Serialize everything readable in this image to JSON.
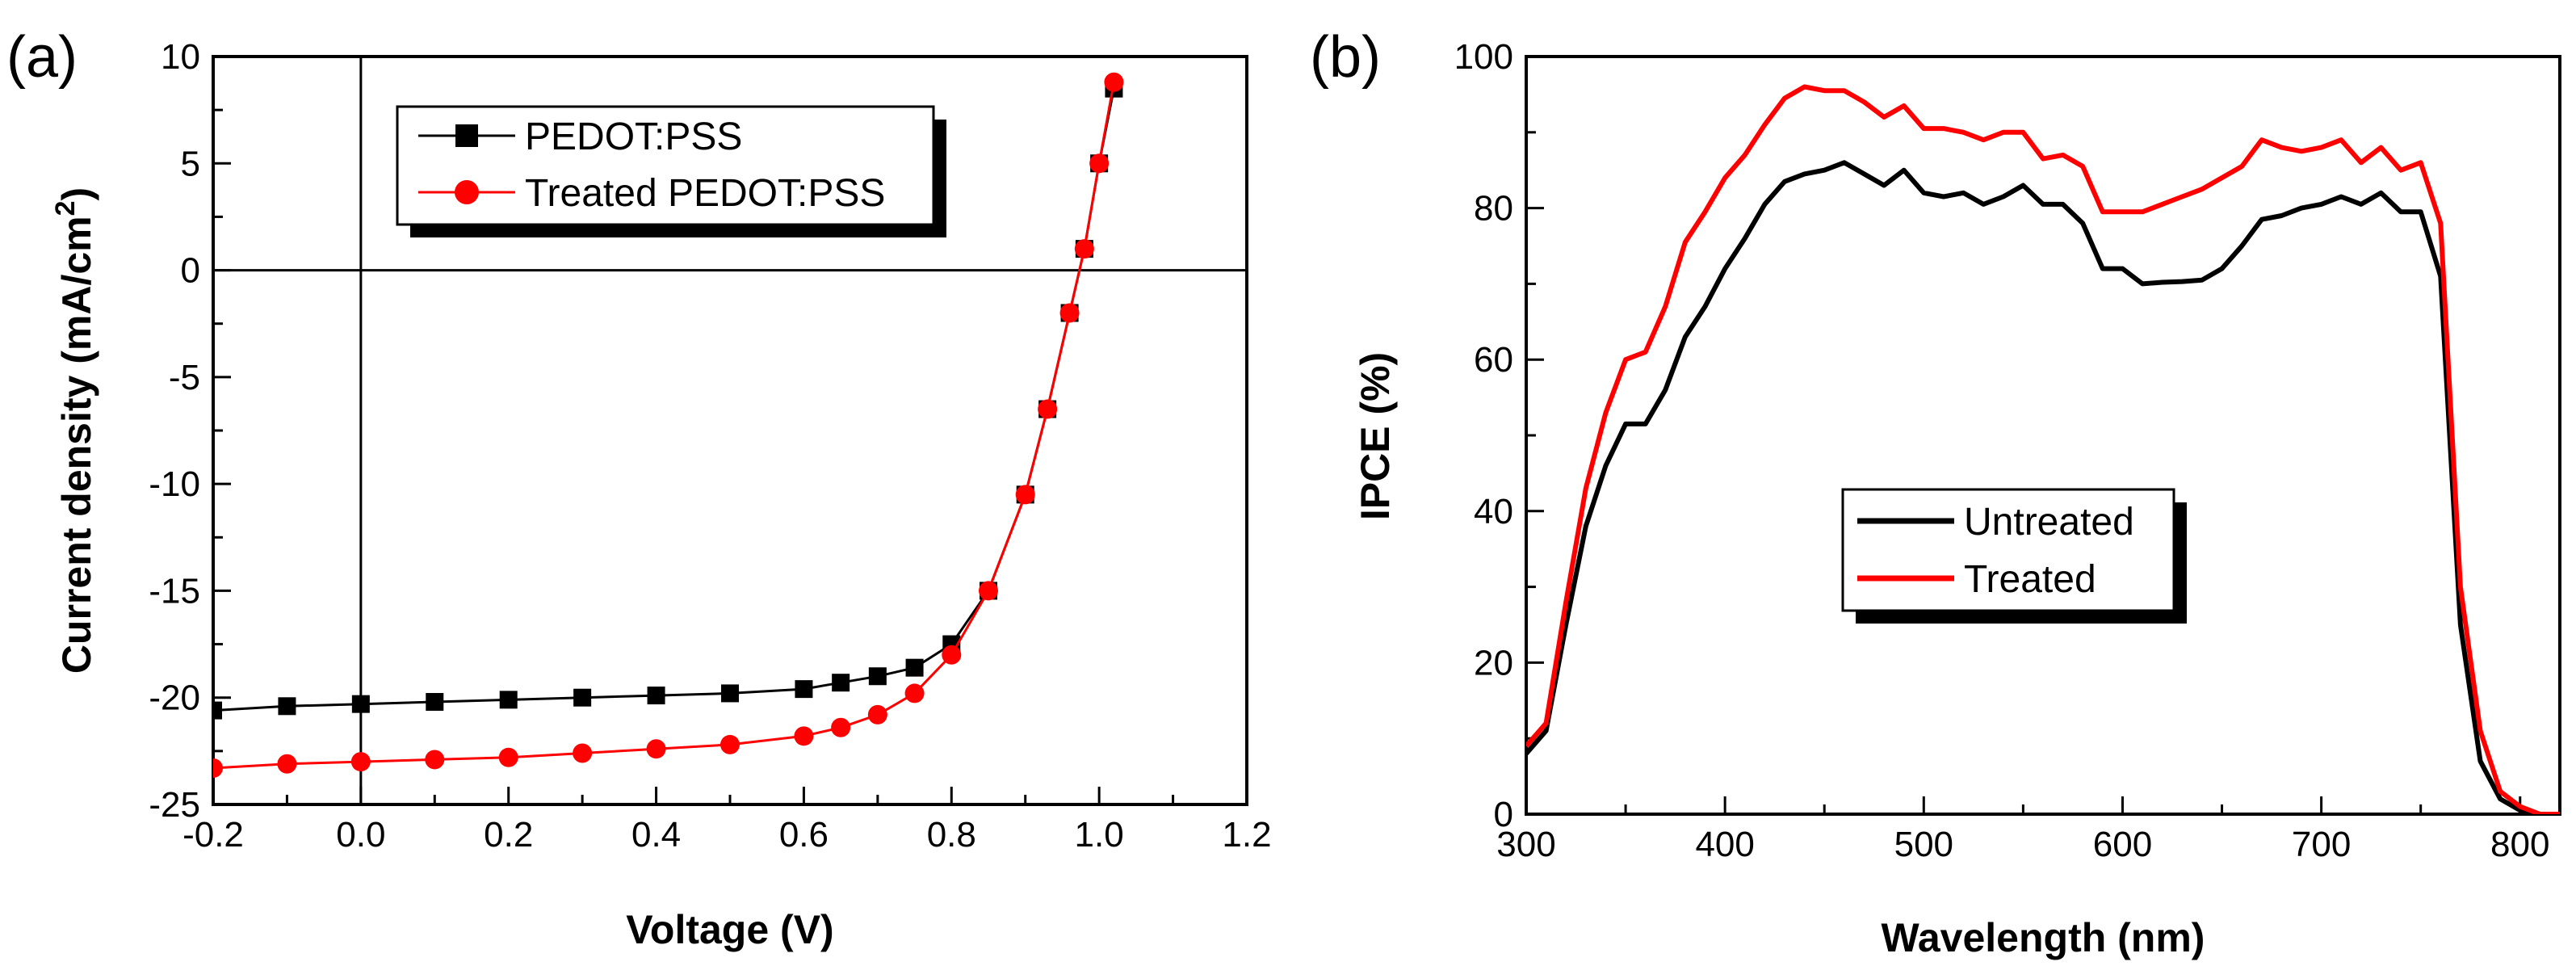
{
  "chart_data": [
    {
      "panel": "(a)",
      "type": "line",
      "xlabel": "Voltage (V)",
      "ylabel_main": "Current density (mA/cm",
      "ylabel_sup": "2",
      "ylabel_end": ")",
      "xlim": [
        -0.2,
        1.2
      ],
      "ylim": [
        -25,
        10
      ],
      "xticks": [
        -0.2,
        0.0,
        0.2,
        0.4,
        0.6,
        0.8,
        1.0,
        1.2
      ],
      "xtick_labels": [
        "-0.2",
        "0.0",
        "0.2",
        "0.4",
        "0.6",
        "0.8",
        "1.0",
        "1.2"
      ],
      "yticks": [
        -25,
        -20,
        -15,
        -10,
        -5,
        0,
        5,
        10
      ],
      "ytick_labels": [
        "-25",
        "-20",
        "-15",
        "-10",
        "-5",
        "0",
        "5",
        "10"
      ],
      "legend_position": "top-center",
      "series": [
        {
          "name": "PEDOT:PSS",
          "color": "#000000",
          "marker": "square",
          "x": [
            -0.2,
            -0.1,
            0.0,
            0.1,
            0.2,
            0.3,
            0.4,
            0.5,
            0.6,
            0.65,
            0.7,
            0.75,
            0.8,
            0.85,
            0.9,
            0.93,
            0.96,
            0.98,
            1.0,
            1.02
          ],
          "y": [
            -20.6,
            -20.4,
            -20.3,
            -20.2,
            -20.1,
            -20.0,
            -19.9,
            -19.8,
            -19.6,
            -19.3,
            -19.0,
            -18.6,
            -17.5,
            -15.0,
            -10.5,
            -6.5,
            -2.0,
            1.0,
            5.0,
            8.5
          ]
        },
        {
          "name": "Treated PEDOT:PSS",
          "color": "#ff0000",
          "marker": "circle",
          "x": [
            -0.2,
            -0.1,
            0.0,
            0.1,
            0.2,
            0.3,
            0.4,
            0.5,
            0.6,
            0.65,
            0.7,
            0.75,
            0.8,
            0.85,
            0.9,
            0.93,
            0.96,
            0.98,
            1.0,
            1.02
          ],
          "y": [
            -23.3,
            -23.1,
            -23.0,
            -22.9,
            -22.8,
            -22.6,
            -22.4,
            -22.2,
            -21.8,
            -21.4,
            -20.8,
            -19.8,
            -18.0,
            -15.0,
            -10.5,
            -6.5,
            -2.0,
            1.0,
            5.0,
            8.8
          ]
        }
      ]
    },
    {
      "panel": "(b)",
      "type": "line",
      "xlabel": "Wavelength (nm)",
      "ylabel": "IPCE (%)",
      "xlim": [
        300,
        820
      ],
      "ylim": [
        0,
        100
      ],
      "xticks": [
        300,
        400,
        500,
        600,
        700,
        800
      ],
      "xtick_labels": [
        "300",
        "400",
        "500",
        "600",
        "700",
        "800"
      ],
      "yticks": [
        0,
        20,
        40,
        60,
        80,
        100
      ],
      "ytick_labels": [
        "0",
        "20",
        "40",
        "60",
        "80",
        "100"
      ],
      "legend_position": "center",
      "series": [
        {
          "name": "Untreated",
          "color": "#000000",
          "x": [
            300,
            310,
            320,
            330,
            340,
            350,
            360,
            370,
            380,
            390,
            400,
            410,
            420,
            430,
            440,
            450,
            460,
            470,
            480,
            490,
            500,
            510,
            520,
            530,
            540,
            550,
            560,
            570,
            580,
            590,
            600,
            610,
            620,
            630,
            640,
            650,
            660,
            670,
            680,
            690,
            700,
            710,
            720,
            730,
            740,
            750,
            760,
            770,
            780,
            790,
            800,
            810,
            820
          ],
          "y": [
            8,
            11,
            25,
            38,
            46,
            51.5,
            51.5,
            56,
            63,
            67,
            72,
            76,
            80.5,
            83.5,
            84.5,
            85,
            86,
            84.5,
            83,
            85,
            82,
            81.5,
            82,
            80.5,
            81.5,
            83,
            80.5,
            80.5,
            78,
            72,
            72,
            70,
            70.2,
            70.3,
            70.5,
            72,
            75,
            78.5,
            79,
            80,
            80.5,
            81.5,
            80.5,
            82,
            79.5,
            79.5,
            71,
            25,
            7,
            2,
            0.5,
            0,
            0
          ]
        },
        {
          "name": "Treated",
          "color": "#ff0000",
          "x": [
            300,
            310,
            320,
            330,
            340,
            350,
            360,
            370,
            380,
            390,
            400,
            410,
            420,
            430,
            440,
            450,
            460,
            470,
            480,
            490,
            500,
            510,
            520,
            530,
            540,
            550,
            560,
            570,
            580,
            590,
            600,
            610,
            620,
            630,
            640,
            650,
            660,
            670,
            680,
            690,
            700,
            710,
            720,
            730,
            740,
            750,
            760,
            770,
            780,
            790,
            800,
            810,
            820
          ],
          "y": [
            9,
            12,
            28,
            43,
            53,
            60,
            61,
            67,
            75.5,
            79.5,
            84,
            87,
            91,
            94.5,
            96,
            95.5,
            95.5,
            94,
            92,
            93.5,
            90.5,
            90.5,
            90,
            89,
            90,
            90,
            86.5,
            87,
            85.5,
            79.5,
            79.5,
            79.5,
            80.5,
            81.5,
            82.5,
            84,
            85.5,
            89,
            88,
            87.5,
            88,
            89,
            86,
            88,
            85,
            86,
            78,
            30,
            11,
            3,
            1,
            0,
            0
          ]
        }
      ]
    }
  ]
}
